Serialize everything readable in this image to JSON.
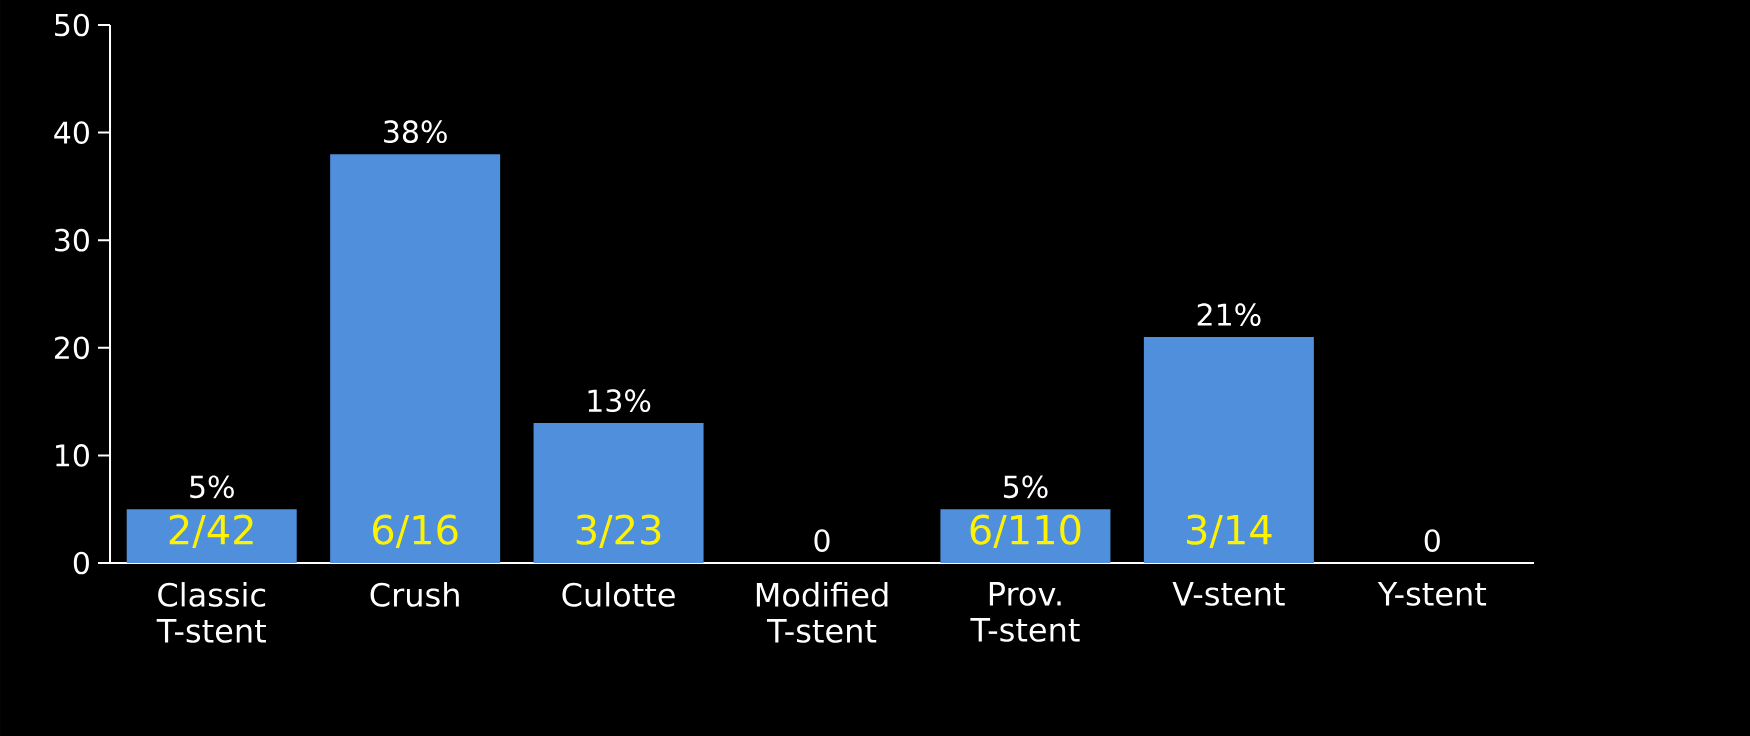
{
  "chart_data": {
    "type": "bar",
    "categories": [
      "Classic T-stent",
      "Crush",
      "Culotte",
      "Modified T-stent",
      "Prov. T-stent",
      "V-stent",
      "Y-stent"
    ],
    "values": [
      5,
      38,
      13,
      0,
      5,
      21,
      0
    ],
    "value_labels": [
      "5%",
      "38%",
      "13%",
      "0",
      "5%",
      "21%",
      "0"
    ],
    "color": "#4f8fdc",
    "ylim": [
      0,
      50
    ],
    "yticks": [
      0,
      10,
      20,
      30,
      40,
      50
    ],
    "grid": false,
    "annotations": [
      "2/42",
      "6/16",
      "3/23",
      "6/110",
      "3/14"
    ]
  }
}
